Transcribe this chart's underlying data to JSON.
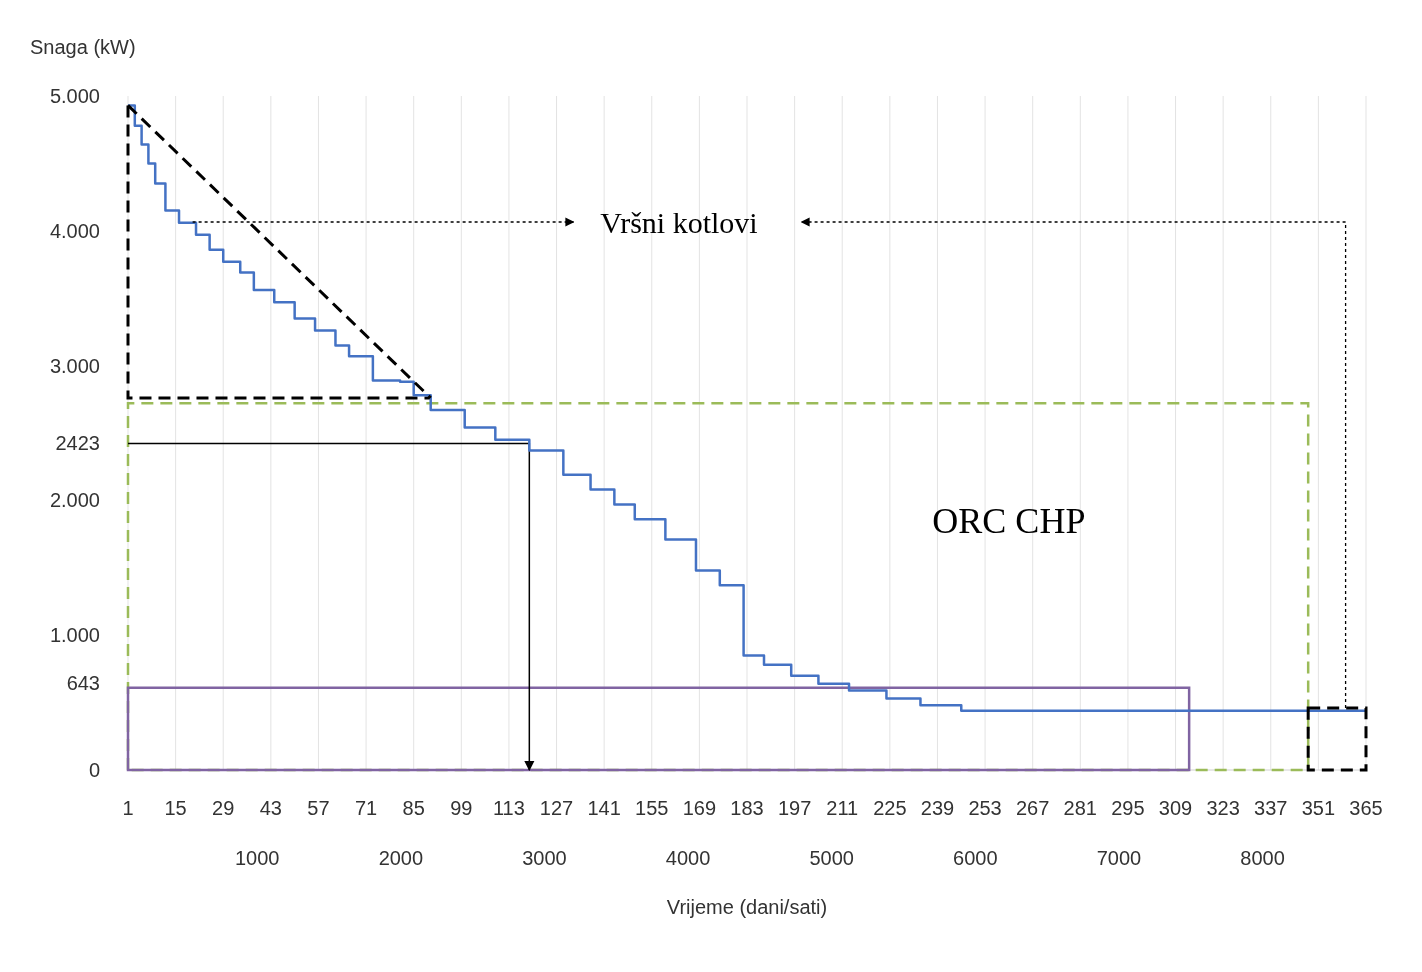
{
  "chart_data": {
    "type": "step",
    "xlabel": "Vrijeme (dani/sati)",
    "ylabel": "Snaga (kW)",
    "xlim": [
      1,
      365
    ],
    "xticks": [
      1,
      15,
      29,
      43,
      57,
      71,
      85,
      99,
      113,
      127,
      141,
      155,
      169,
      183,
      197,
      211,
      225,
      239,
      253,
      267,
      281,
      295,
      309,
      323,
      337,
      351,
      365
    ],
    "x2lim": [
      100,
      8720
    ],
    "x2ticks": [
      1000,
      2000,
      3000,
      4000,
      5000,
      6000,
      7000,
      8000
    ],
    "ylim": [
      0,
      5000
    ],
    "yticks": [
      0,
      643,
      {
        "value": 1000,
        "label": "1.000"
      },
      {
        "value": 2000,
        "label": "2.000"
      },
      2423,
      {
        "value": 3000,
        "label": "3.000"
      },
      {
        "value": 4000,
        "label": "4.000"
      },
      {
        "value": 5000,
        "label": "5.000"
      }
    ],
    "grid": "x",
    "marker": "none",
    "line_style": "solid",
    "series": [
      {
        "color": "#4472c4",
        "x": [
          1,
          3,
          5,
          7,
          9,
          12,
          16,
          21,
          25,
          29,
          34,
          38,
          44,
          50,
          56,
          62,
          66,
          73,
          81,
          85,
          90,
          100,
          109,
          119,
          129,
          137,
          144,
          150,
          159,
          168,
          175,
          181,
          182,
          188,
          196,
          204,
          213,
          224,
          234,
          246,
          365
        ],
        "values": [
          4930,
          4780,
          4640,
          4500,
          4350,
          4150,
          4060,
          3970,
          3860,
          3770,
          3690,
          3560,
          3470,
          3350,
          3260,
          3150,
          3070,
          2890,
          2880,
          2780,
          2670,
          2540,
          2450,
          2370,
          2190,
          2080,
          1970,
          1860,
          1710,
          1480,
          1370,
          1370,
          850,
          780,
          700,
          640,
          590,
          530,
          480,
          440,
          440
        ]
      },
      {
        "type": "line",
        "line_style": "dashed",
        "color": "#000000",
        "x": [
          1,
          90
        ],
        "values": [
          4930,
          2760
        ]
      },
      {
        "type": "bar",
        "line_style": "dashed",
        "color": "#000000",
        "x": [
          356.5
        ],
        "values": [
          460
        ]
      }
    ],
    "annotations": [
      "Vršni kotlovi",
      "ORC CHP"
    ]
  }
}
